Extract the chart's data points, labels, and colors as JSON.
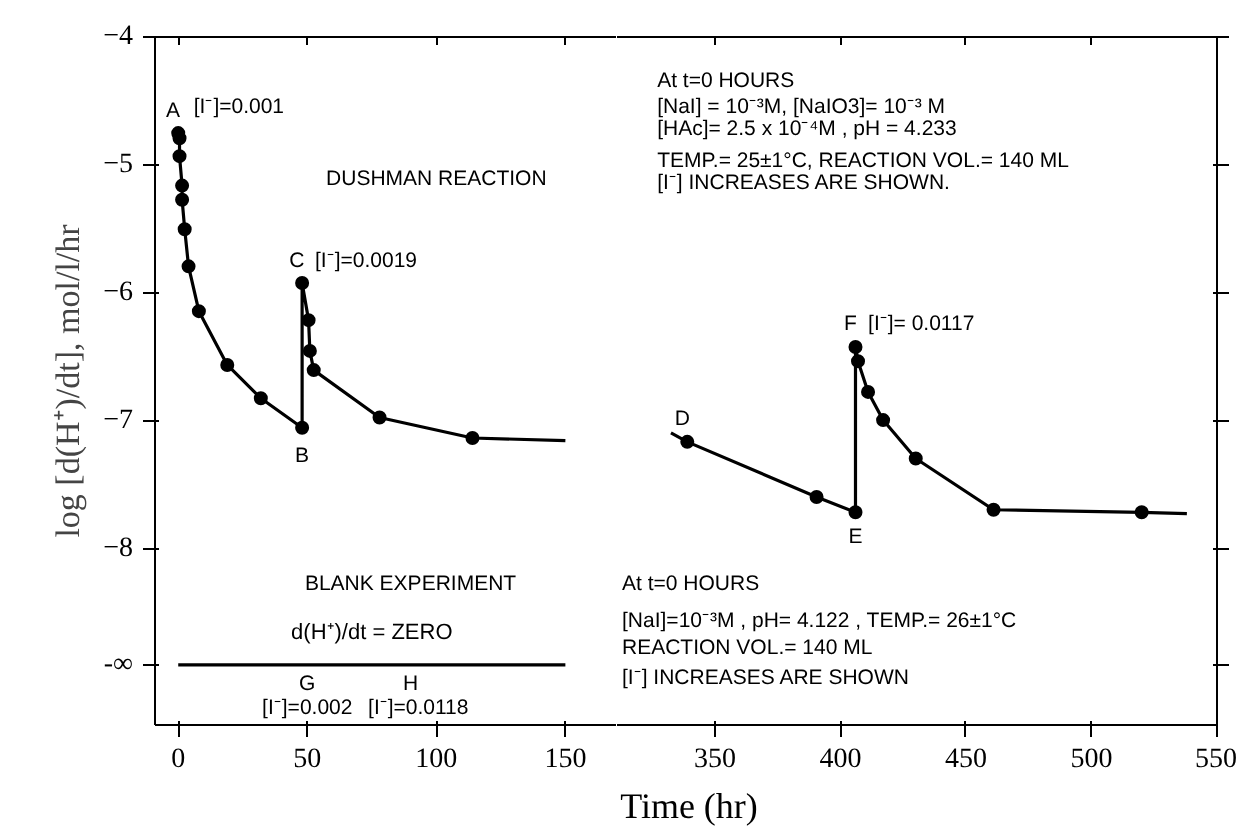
{
  "chart_data": [
    {
      "type": "line",
      "ylabel": "log [d(H⁺)/dt], mol/l/hr",
      "xlabel": "Time (hr)",
      "xlim": [
        -9,
        170
      ],
      "xticks": [
        0,
        50,
        100,
        150
      ],
      "ylim": [
        -9.37,
        -4
      ],
      "yticks": [
        -4,
        -5,
        -6,
        -7,
        -8,
        {
          "value": -8.9,
          "label": "-∞"
        }
      ],
      "grid": false,
      "series": [
        {
          "color": "#000000",
          "line_style": "solid",
          "marker": "none",
          "x": [
            0,
            0.5,
            0.5,
            1.5,
            1.5,
            2.5,
            4,
            8,
            19,
            32,
            48,
            48,
            50.5,
            51,
            52.5,
            78,
            114,
            150
          ],
          "values": [
            -4.75,
            -4.79,
            -4.93,
            -5.16,
            -5.27,
            -5.5,
            -5.79,
            -6.14,
            -6.56,
            -6.82,
            -7.05,
            -5.92,
            -6.21,
            -6.45,
            -6.6,
            -6.97,
            -7.13,
            -7.15
          ]
        },
        {
          "type": "scatter",
          "color": "#000000",
          "marker": "circle",
          "x": [
            0,
            0.5,
            0.5,
            1.5,
            1.5,
            2.5,
            4,
            8,
            19,
            32,
            48,
            48,
            50.5,
            51,
            52.5,
            78,
            114
          ],
          "values": [
            -4.75,
            -4.79,
            -4.93,
            -5.16,
            -5.27,
            -5.5,
            -5.79,
            -6.14,
            -6.56,
            -6.82,
            -7.05,
            -5.92,
            -6.21,
            -6.45,
            -6.6,
            -6.97,
            -7.13
          ]
        },
        {
          "name": "d(H⁺)/dt = ZERO",
          "color": "#000000",
          "line_style": "solid",
          "marker": "none",
          "x": [
            0,
            150
          ],
          "values": [
            -8.9,
            -8.9
          ]
        }
      ],
      "annotations": [
        "A",
        "[I⁻]=0.001",
        "C",
        "[I⁻]=0.0019",
        "B",
        "G",
        "H",
        "[I⁻]=0.002",
        "[I⁻]=0.0118",
        "DUSHMAN REACTION",
        "BLANK EXPERIMENT"
      ]
    },
    {
      "type": "line",
      "xlim": [
        311,
        550
      ],
      "xticks": [
        350,
        400,
        450,
        500,
        550
      ],
      "ylim": [
        -9.37,
        -4
      ],
      "yticks": [
        -4,
        -5,
        -6,
        -7,
        -8,
        {
          "value": -8.9,
          "label": null
        }
      ],
      "grid": false,
      "tick_labels": "x",
      "series": [
        {
          "color": "#000000",
          "line_style": "solid",
          "marker": "none",
          "x": [
            332.5,
            339,
            390.5,
            406,
            406,
            407,
            411,
            417,
            430,
            461,
            520,
            538
          ],
          "values": [
            -7.09,
            -7.16,
            -7.59,
            -7.71,
            -6.42,
            -6.53,
            -6.77,
            -6.99,
            -7.29,
            -7.69,
            -7.71,
            -7.72
          ]
        },
        {
          "type": "scatter",
          "color": "#000000",
          "marker": "circle",
          "x": [
            339,
            390.5,
            406,
            406,
            407,
            411,
            417,
            430,
            461,
            520
          ],
          "values": [
            -7.16,
            -7.59,
            -7.71,
            -6.42,
            -6.53,
            -6.77,
            -6.99,
            -7.29,
            -7.69,
            -7.71
          ]
        }
      ],
      "annotations": [
        "D",
        "E",
        "F",
        "[I⁻]= 0.0117",
        "At t=0 HOURS",
        "[NaI] = 10⁻³M,   [NaIO3]= 10⁻³ M",
        "[HAc]= 2.5 x 10⁻⁴M ,  pH = 4.233",
        "TEMP.= 25±1°C,  REACTION VOL.= 140 ML",
        "[I⁻] INCREASES ARE SHOWN.",
        "At t=0 HOURS",
        "[NaI]=10⁻³M , pH= 4.122 ,  TEMP.= 26±1°C",
        "REACTION VOL.= 140 ML",
        "[I⁻] INCREASES ARE SHOWN"
      ]
    }
  ]
}
